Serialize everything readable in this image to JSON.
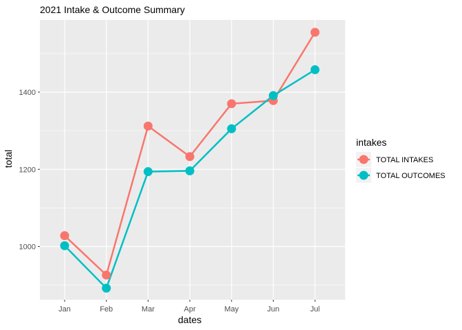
{
  "chart_data": {
    "type": "line",
    "title": "2021 Intake & Outcome Summary",
    "xlabel": "dates",
    "ylabel": "total",
    "categories": [
      "Jan",
      "Feb",
      "Mar",
      "Apr",
      "May",
      "Jun",
      "Jul"
    ],
    "ylim": [
      862,
      1587
    ],
    "yticks": [
      1000,
      1200,
      1400
    ],
    "grid": true,
    "legend": {
      "title": "intakes",
      "position": "right"
    },
    "series": [
      {
        "name": "TOTAL INTAKES",
        "color": "#F8766D",
        "values": [
          1028,
          926,
          1312,
          1233,
          1370,
          1378,
          1555
        ]
      },
      {
        "name": "TOTAL OUTCOMES",
        "color": "#00BFC4",
        "values": [
          1002,
          892,
          1194,
          1196,
          1305,
          1391,
          1458
        ]
      }
    ]
  }
}
